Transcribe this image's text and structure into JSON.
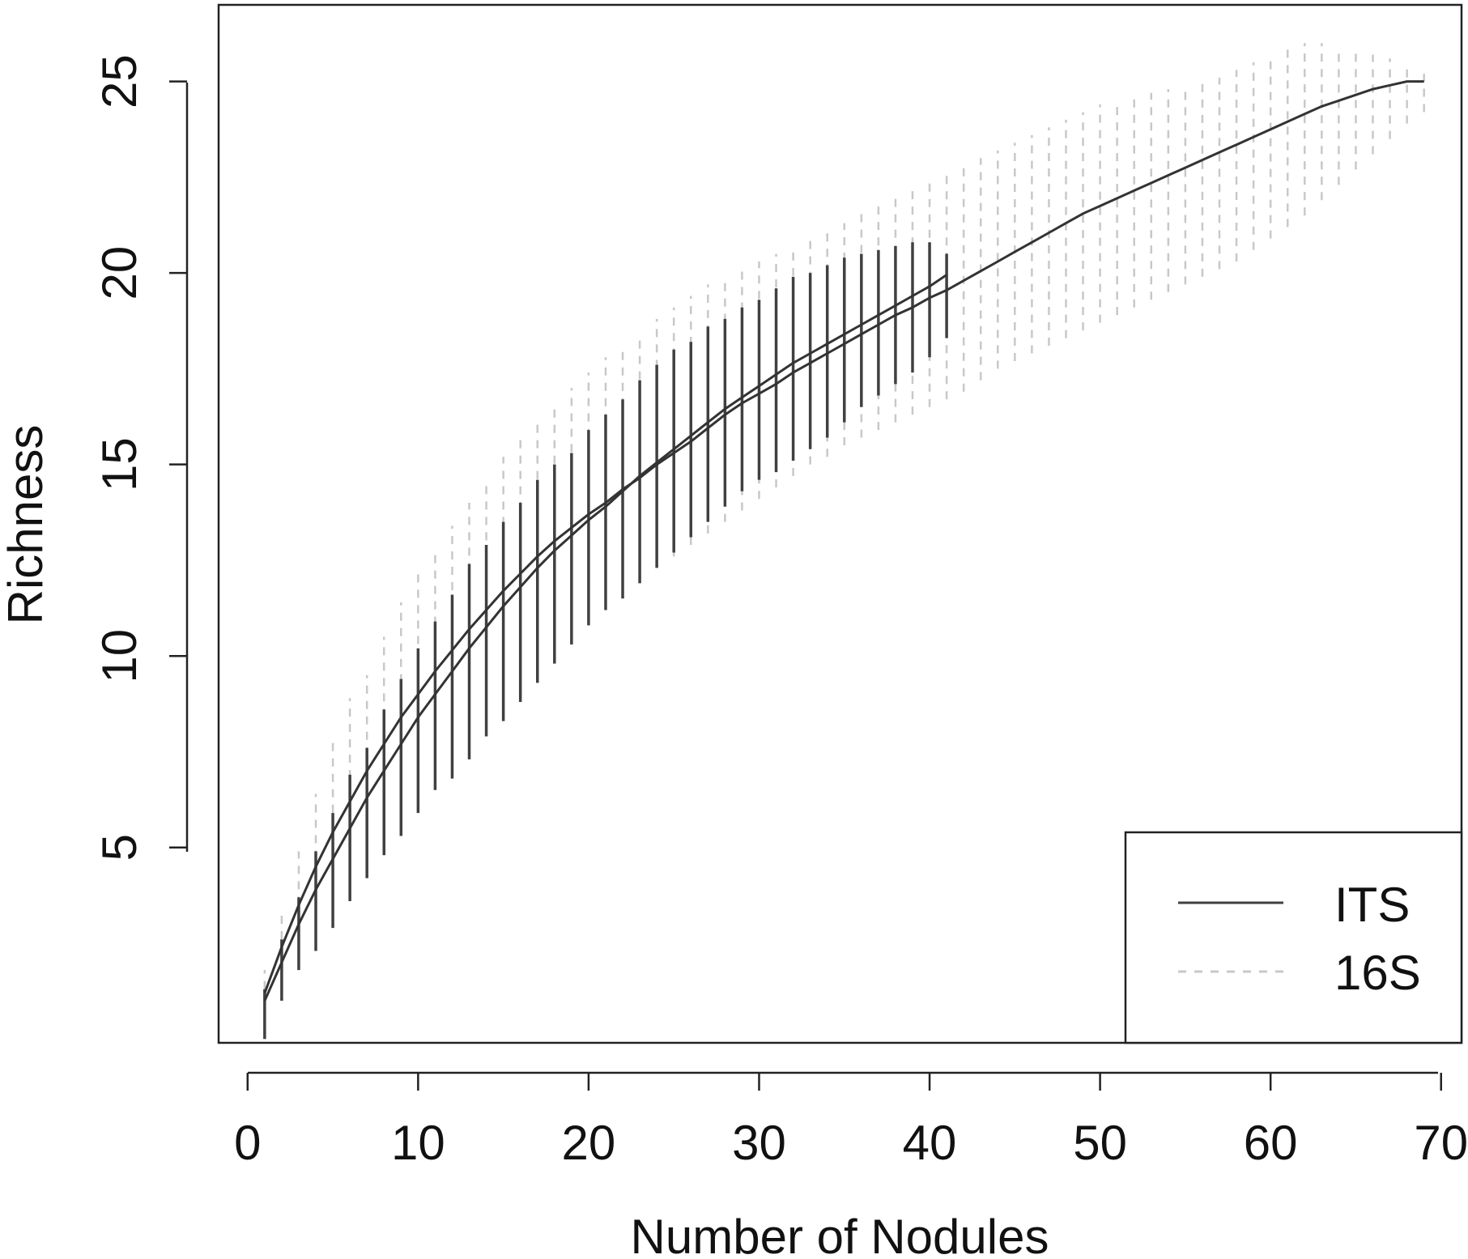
{
  "chart_data": {
    "type": "line",
    "title": "",
    "xlabel": "Number of Nodules",
    "ylabel": "Richness",
    "xlim": [
      -1.7,
      71.2
    ],
    "ylim": [
      -0.1,
      27.0
    ],
    "x_ticks": [
      0,
      10,
      20,
      30,
      40,
      50,
      60,
      70
    ],
    "y_ticks": [
      5,
      10,
      15,
      20,
      25
    ],
    "x_tick_labels": [
      "0",
      "10",
      "20",
      "30",
      "40",
      "50",
      "60",
      "70"
    ],
    "y_tick_labels": [
      "5",
      "10",
      "15",
      "20",
      "25"
    ],
    "grid": false,
    "legend_position": "bottom-right",
    "series": [
      {
        "name": "ITS",
        "style": "solid",
        "color": "#404040",
        "x": [
          1,
          2,
          3,
          4,
          5,
          6,
          7,
          8,
          9,
          10,
          11,
          12,
          13,
          14,
          15,
          16,
          17,
          18,
          19,
          20,
          21,
          22,
          23,
          24,
          25,
          26,
          27,
          28,
          29,
          30,
          31,
          32,
          33,
          34,
          35,
          36,
          37,
          38,
          39,
          40,
          41
        ],
        "y": [
          1.0,
          2.0,
          3.0,
          3.9,
          4.7,
          5.5,
          6.3,
          7.0,
          7.7,
          8.4,
          9.0,
          9.6,
          10.2,
          10.75,
          11.3,
          11.8,
          12.3,
          12.75,
          13.15,
          13.55,
          13.9,
          14.3,
          14.7,
          15.05,
          15.4,
          15.75,
          16.1,
          16.45,
          16.75,
          17.05,
          17.35,
          17.65,
          17.9,
          18.15,
          18.4,
          18.65,
          18.9,
          19.15,
          19.4,
          19.65,
          19.95
        ],
        "lower": [
          0.0,
          1.0,
          1.8,
          2.3,
          2.9,
          3.6,
          4.2,
          4.8,
          5.3,
          5.9,
          6.5,
          6.8,
          7.3,
          7.9,
          8.3,
          8.8,
          9.3,
          9.8,
          10.3,
          10.8,
          11.2,
          11.5,
          11.9,
          12.3,
          12.7,
          13.1,
          13.5,
          13.9,
          14.3,
          14.6,
          14.8,
          15.1,
          15.4,
          15.7,
          16.1,
          16.5,
          16.8,
          17.1,
          17.4,
          17.8,
          18.3
        ],
        "upper": [
          1.3,
          2.6,
          3.7,
          4.9,
          5.9,
          6.9,
          7.6,
          8.6,
          9.4,
          10.2,
          10.9,
          11.6,
          12.4,
          12.9,
          13.5,
          14.0,
          14.6,
          15.0,
          15.3,
          15.9,
          16.3,
          16.7,
          17.2,
          17.6,
          18.0,
          18.2,
          18.6,
          18.8,
          19.1,
          19.3,
          19.6,
          19.9,
          20.0,
          20.2,
          20.4,
          20.5,
          20.6,
          20.7,
          20.8,
          20.8,
          20.5
        ]
      },
      {
        "name": "16S",
        "style": "dashed",
        "color": "#c8c8c8",
        "x": [
          1,
          2,
          3,
          4,
          5,
          6,
          7,
          8,
          9,
          10,
          11,
          12,
          13,
          14,
          15,
          16,
          17,
          18,
          19,
          20,
          21,
          22,
          23,
          24,
          25,
          26,
          27,
          28,
          29,
          30,
          31,
          32,
          33,
          34,
          35,
          36,
          37,
          38,
          39,
          40,
          41,
          42,
          43,
          44,
          45,
          46,
          47,
          48,
          49,
          50,
          51,
          52,
          53,
          54,
          55,
          56,
          57,
          58,
          59,
          60,
          61,
          62,
          63,
          64,
          65,
          66,
          67,
          68,
          69
        ],
        "y": [
          1.2,
          2.4,
          3.5,
          4.5,
          5.4,
          6.2,
          7.0,
          7.7,
          8.4,
          9.0,
          9.6,
          10.15,
          10.7,
          11.2,
          11.7,
          12.15,
          12.6,
          13.0,
          13.35,
          13.7,
          14.0,
          14.35,
          14.65,
          15.0,
          15.3,
          15.6,
          15.95,
          16.3,
          16.6,
          16.85,
          17.1,
          17.4,
          17.65,
          17.9,
          18.15,
          18.4,
          18.65,
          18.9,
          19.1,
          19.35,
          19.55,
          19.8,
          20.05,
          20.3,
          20.55,
          20.8,
          21.05,
          21.3,
          21.55,
          21.75,
          21.95,
          22.15,
          22.35,
          22.55,
          22.75,
          22.95,
          23.15,
          23.35,
          23.55,
          23.75,
          23.95,
          24.15,
          24.35,
          24.5,
          24.65,
          24.8,
          24.9,
          25.0,
          25.0
        ],
        "lower": [
          0.1,
          1.0,
          1.9,
          2.7,
          3.5,
          4.4,
          5.0,
          5.6,
          6.1,
          6.7,
          7.2,
          7.7,
          8.2,
          8.6,
          9.0,
          9.4,
          9.8,
          10.2,
          10.5,
          10.9,
          11.3,
          11.7,
          12.0,
          12.3,
          12.6,
          12.9,
          13.2,
          13.5,
          13.8,
          14.1,
          14.4,
          14.7,
          15.0,
          15.2,
          15.5,
          15.7,
          15.9,
          16.1,
          16.3,
          16.5,
          16.7,
          16.9,
          17.2,
          17.5,
          17.7,
          17.9,
          18.1,
          18.3,
          18.5,
          18.7,
          18.9,
          19.1,
          19.3,
          19.5,
          19.7,
          19.9,
          20.1,
          20.3,
          20.6,
          20.9,
          21.2,
          21.5,
          21.9,
          22.3,
          22.7,
          23.1,
          23.5,
          23.9,
          24.2
        ],
        "upper": [
          1.8,
          3.4,
          4.9,
          6.4,
          7.9,
          8.9,
          9.5,
          10.5,
          11.4,
          12.2,
          12.8,
          13.4,
          14.0,
          14.6,
          15.2,
          15.8,
          16.2,
          16.6,
          17.0,
          17.4,
          17.8,
          18.1,
          18.4,
          18.8,
          19.1,
          19.4,
          19.7,
          19.9,
          20.1,
          20.3,
          20.5,
          20.7,
          20.9,
          21.1,
          21.3,
          21.6,
          21.8,
          22.0,
          22.2,
          22.4,
          22.6,
          22.8,
          23.0,
          23.2,
          23.4,
          23.6,
          23.8,
          24.0,
          24.2,
          24.4,
          24.5,
          24.6,
          24.7,
          24.8,
          24.9,
          25.0,
          25.1,
          25.3,
          25.5,
          25.7,
          25.9,
          26.0,
          26.0,
          25.9,
          25.8,
          25.7,
          25.6,
          25.4,
          25.2
        ]
      }
    ]
  }
}
